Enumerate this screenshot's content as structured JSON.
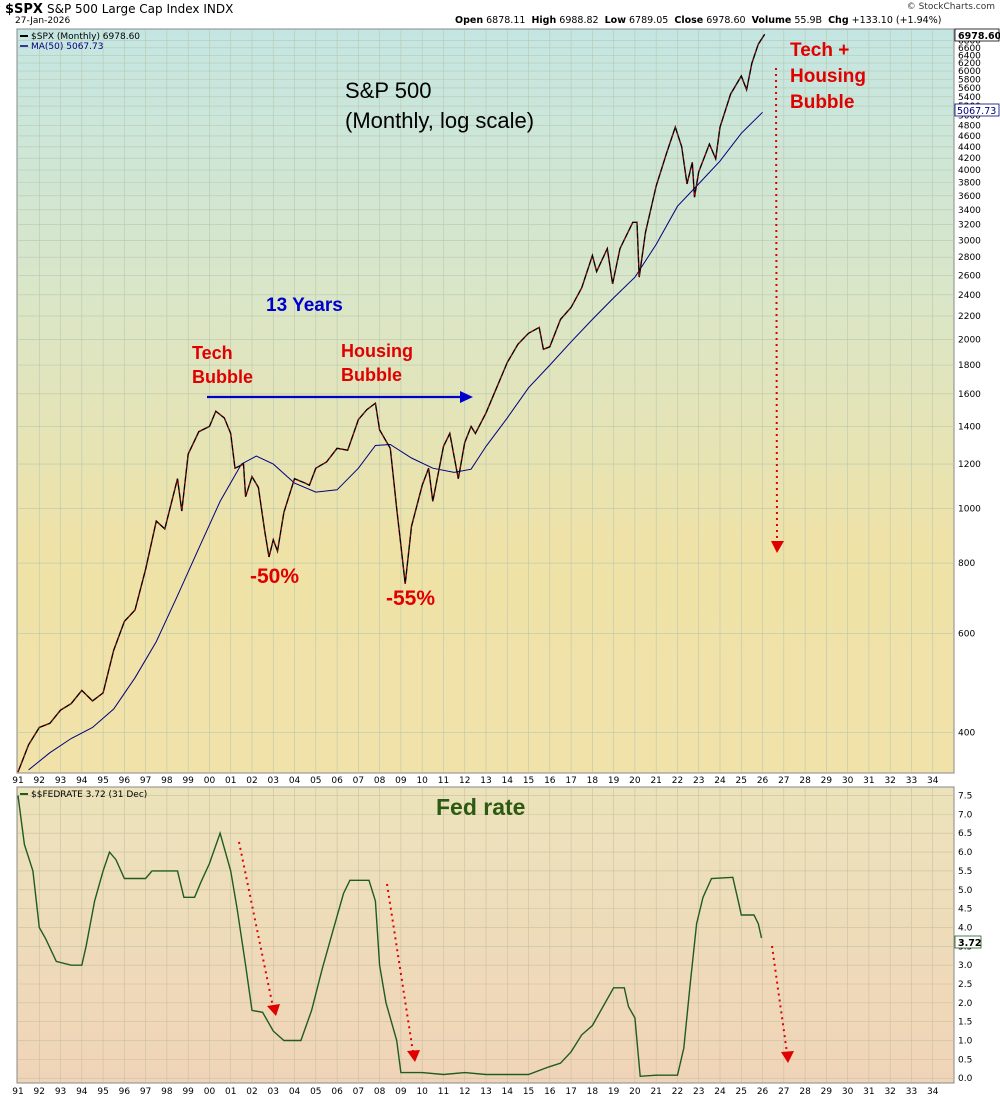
{
  "header": {
    "symbol": "$SPX",
    "name": "S&P 500 Large Cap Index",
    "exchange": "INDX",
    "date": "27-Jan-2026",
    "open_label": "Open",
    "open": "6878.11",
    "high_label": "High",
    "high": "6988.82",
    "low_label": "Low",
    "low": "6789.05",
    "close_label": "Close",
    "close": "6978.60",
    "volume_label": "Volume",
    "volume": "55.9B",
    "chg_label": "Chg",
    "chg": "+133.10 (+1.94%)",
    "watermark": "© StockCharts.com"
  },
  "colors": {
    "price": "#000000",
    "price_down": "#cc0000",
    "ma": "#000080",
    "fed": "#1f5c1f",
    "annot_red": "#e00000",
    "annot_blue": "#0000cc",
    "annot_green": "#2d5a12"
  },
  "chart_data": [
    {
      "type": "line",
      "scale": "log",
      "legend": [
        "$SPX (Monthly) 6978.60",
        "MA(50) 5067.73"
      ],
      "legend_placement": "top-left",
      "price_tag": "6978.60",
      "ma_tag": "5067.73",
      "ylim": [
        340,
        7100
      ],
      "xlim": [
        1991,
        2035
      ],
      "x_tick_labels": [
        "91",
        "92",
        "93",
        "94",
        "95",
        "96",
        "97",
        "98",
        "99",
        "00",
        "01",
        "02",
        "03",
        "04",
        "05",
        "06",
        "07",
        "08",
        "09",
        "10",
        "11",
        "12",
        "13",
        "14",
        "15",
        "16",
        "17",
        "18",
        "19",
        "20",
        "21",
        "22",
        "23",
        "24",
        "25",
        "26",
        "27",
        "28",
        "29",
        "30",
        "31",
        "32",
        "33",
        "34"
      ],
      "y_ticks": [
        400,
        600,
        800,
        1000,
        1200,
        1400,
        1600,
        1800,
        2000,
        2200,
        2400,
        2600,
        2800,
        3000,
        3200,
        3400,
        3600,
        3800,
        4000,
        4200,
        4400,
        4600,
        4800,
        5000,
        5200,
        5400,
        5600,
        5800,
        6000,
        6200,
        6400,
        6600,
        6800
      ],
      "grid": true,
      "annotations": {
        "title": "S&P 500",
        "subtitle": "(Monthly, log scale)",
        "tech_bubble": [
          "Tech",
          "Bubble"
        ],
        "housing_bubble": [
          "Housing",
          "Bubble"
        ],
        "years": "13 Years",
        "drop1": "-50%",
        "drop2": "-55%",
        "future": [
          "Tech +",
          "Housing",
          "Bubble"
        ]
      },
      "series": [
        {
          "name": "$SPX (Monthly)",
          "points": [
            [
              1991.0,
              340
            ],
            [
              1991.5,
              380
            ],
            [
              1992.0,
              408
            ],
            [
              1992.5,
              415
            ],
            [
              1993.0,
              438
            ],
            [
              1993.5,
              450
            ],
            [
              1994.0,
              475
            ],
            [
              1994.5,
              455
            ],
            [
              1995.0,
              470
            ],
            [
              1995.5,
              560
            ],
            [
              1996.0,
              630
            ],
            [
              1996.5,
              660
            ],
            [
              1997.0,
              780
            ],
            [
              1997.5,
              950
            ],
            [
              1997.9,
              920
            ],
            [
              1998.5,
              1130
            ],
            [
              1998.7,
              990
            ],
            [
              1999.0,
              1250
            ],
            [
              1999.5,
              1370
            ],
            [
              2000.0,
              1400
            ],
            [
              2000.3,
              1490
            ],
            [
              2000.7,
              1450
            ],
            [
              2001.0,
              1360
            ],
            [
              2001.2,
              1180
            ],
            [
              2001.6,
              1200
            ],
            [
              2001.7,
              1050
            ],
            [
              2002.0,
              1140
            ],
            [
              2002.3,
              1090
            ],
            [
              2002.6,
              910
            ],
            [
              2002.8,
              820
            ],
            [
              2003.0,
              880
            ],
            [
              2003.2,
              840
            ],
            [
              2003.5,
              985
            ],
            [
              2004.0,
              1130
            ],
            [
              2004.5,
              1110
            ],
            [
              2004.7,
              1100
            ],
            [
              2005.0,
              1180
            ],
            [
              2005.5,
              1210
            ],
            [
              2006.0,
              1280
            ],
            [
              2006.5,
              1270
            ],
            [
              2007.0,
              1440
            ],
            [
              2007.4,
              1500
            ],
            [
              2007.8,
              1540
            ],
            [
              2008.0,
              1380
            ],
            [
              2008.5,
              1280
            ],
            [
              2008.8,
              1000
            ],
            [
              2009.0,
              860
            ],
            [
              2009.2,
              735
            ],
            [
              2009.5,
              930
            ],
            [
              2010.0,
              1100
            ],
            [
              2010.3,
              1180
            ],
            [
              2010.5,
              1030
            ],
            [
              2011.0,
              1290
            ],
            [
              2011.3,
              1360
            ],
            [
              2011.7,
              1130
            ],
            [
              2012.0,
              1310
            ],
            [
              2012.3,
              1400
            ],
            [
              2012.5,
              1360
            ],
            [
              2013.0,
              1480
            ],
            [
              2013.5,
              1640
            ],
            [
              2014.0,
              1820
            ],
            [
              2014.5,
              1960
            ],
            [
              2015.0,
              2050
            ],
            [
              2015.5,
              2100
            ],
            [
              2015.7,
              1920
            ],
            [
              2016.0,
              1940
            ],
            [
              2016.5,
              2170
            ],
            [
              2017.0,
              2280
            ],
            [
              2017.5,
              2470
            ],
            [
              2018.0,
              2820
            ],
            [
              2018.2,
              2640
            ],
            [
              2018.7,
              2900
            ],
            [
              2018.95,
              2510
            ],
            [
              2019.3,
              2900
            ],
            [
              2019.9,
              3230
            ],
            [
              2020.1,
              3230
            ],
            [
              2020.2,
              2580
            ],
            [
              2020.5,
              3100
            ],
            [
              2021.0,
              3750
            ],
            [
              2021.5,
              4300
            ],
            [
              2021.9,
              4770
            ],
            [
              2022.2,
              4400
            ],
            [
              2022.45,
              3780
            ],
            [
              2022.7,
              4130
            ],
            [
              2022.8,
              3580
            ],
            [
              2023.0,
              3970
            ],
            [
              2023.5,
              4450
            ],
            [
              2023.8,
              4190
            ],
            [
              2024.0,
              4770
            ],
            [
              2024.5,
              5460
            ],
            [
              2025.0,
              5880
            ],
            [
              2025.25,
              5560
            ],
            [
              2025.5,
              6200
            ],
            [
              2025.8,
              6700
            ],
            [
              2026.1,
              6978.6
            ]
          ]
        },
        {
          "name": "MA(50)",
          "points": [
            [
              1991.5,
              343
            ],
            [
              1992.5,
              368
            ],
            [
              1993.5,
              390
            ],
            [
              1994.5,
              408
            ],
            [
              1995.5,
              440
            ],
            [
              1996.5,
              500
            ],
            [
              1997.5,
              580
            ],
            [
              1998.5,
              700
            ],
            [
              1999.5,
              850
            ],
            [
              2000.5,
              1030
            ],
            [
              2001.5,
              1200
            ],
            [
              2002.2,
              1240
            ],
            [
              2003.0,
              1200
            ],
            [
              2004.0,
              1110
            ],
            [
              2005.0,
              1070
            ],
            [
              2006.0,
              1080
            ],
            [
              2007.0,
              1180
            ],
            [
              2007.8,
              1295
            ],
            [
              2008.5,
              1300
            ],
            [
              2009.5,
              1230
            ],
            [
              2010.5,
              1180
            ],
            [
              2011.5,
              1160
            ],
            [
              2012.3,
              1175
            ],
            [
              2013.0,
              1290
            ],
            [
              2014.0,
              1450
            ],
            [
              2015.0,
              1640
            ],
            [
              2016.0,
              1800
            ],
            [
              2017.0,
              1980
            ],
            [
              2018.0,
              2170
            ],
            [
              2019.0,
              2370
            ],
            [
              2020.0,
              2580
            ],
            [
              2021.0,
              2950
            ],
            [
              2022.0,
              3450
            ],
            [
              2023.0,
              3780
            ],
            [
              2024.0,
              4150
            ],
            [
              2025.0,
              4650
            ],
            [
              2026.0,
              5067.73
            ]
          ]
        }
      ]
    },
    {
      "type": "line",
      "legend": [
        "$$FEDRATE 3.72 (31 Dec)"
      ],
      "legend_placement": "top-left",
      "title": "Fed rate",
      "price_tag": "3.72",
      "ylim": [
        -0.1,
        7.7
      ],
      "xlim": [
        1991,
        2035
      ],
      "x_tick_labels": [
        "91",
        "92",
        "93",
        "94",
        "95",
        "96",
        "97",
        "98",
        "99",
        "00",
        "01",
        "02",
        "03",
        "04",
        "05",
        "06",
        "07",
        "08",
        "09",
        "10",
        "11",
        "12",
        "13",
        "14",
        "15",
        "16",
        "17",
        "18",
        "19",
        "20",
        "21",
        "22",
        "23",
        "24",
        "25",
        "26",
        "27",
        "28",
        "29",
        "30",
        "31",
        "32",
        "33",
        "34"
      ],
      "y_ticks": [
        "7.5",
        "7.0",
        "6.5",
        "6.0",
        "5.5",
        "5.0",
        "4.5",
        "4.0",
        "3.5",
        "3.0",
        "2.5",
        "2.0",
        "1.5",
        "1.0",
        "0.5",
        "0.0"
      ],
      "grid": true,
      "series": [
        {
          "name": "$$FEDRATE",
          "points": [
            [
              1991.0,
              7.5
            ],
            [
              1991.3,
              6.2
            ],
            [
              1991.7,
              5.5
            ],
            [
              1992.0,
              4.0
            ],
            [
              1992.3,
              3.7
            ],
            [
              1992.8,
              3.1
            ],
            [
              1993.5,
              3.0
            ],
            [
              1994.0,
              3.0
            ],
            [
              1994.2,
              3.5
            ],
            [
              1994.6,
              4.7
            ],
            [
              1995.0,
              5.5
            ],
            [
              1995.3,
              6.0
            ],
            [
              1995.6,
              5.8
            ],
            [
              1996.0,
              5.3
            ],
            [
              1996.5,
              5.3
            ],
            [
              1997.0,
              5.3
            ],
            [
              1997.3,
              5.5
            ],
            [
              1998.0,
              5.5
            ],
            [
              1998.5,
              5.5
            ],
            [
              1998.8,
              4.8
            ],
            [
              1999.3,
              4.8
            ],
            [
              1999.6,
              5.2
            ],
            [
              2000.0,
              5.7
            ],
            [
              2000.5,
              6.5
            ],
            [
              2001.0,
              5.5
            ],
            [
              2001.3,
              4.5
            ],
            [
              2001.7,
              3.0
            ],
            [
              2002.0,
              1.8
            ],
            [
              2002.5,
              1.75
            ],
            [
              2003.0,
              1.25
            ],
            [
              2003.5,
              1.0
            ],
            [
              2004.3,
              1.0
            ],
            [
              2004.8,
              1.8
            ],
            [
              2005.3,
              2.9
            ],
            [
              2005.8,
              3.9
            ],
            [
              2006.3,
              4.9
            ],
            [
              2006.6,
              5.25
            ],
            [
              2007.5,
              5.25
            ],
            [
              2007.8,
              4.7
            ],
            [
              2008.0,
              3.0
            ],
            [
              2008.3,
              2.0
            ],
            [
              2008.8,
              1.0
            ],
            [
              2009.0,
              0.15
            ],
            [
              2010.0,
              0.15
            ],
            [
              2011.0,
              0.1
            ],
            [
              2012.0,
              0.15
            ],
            [
              2013.0,
              0.1
            ],
            [
              2014.0,
              0.1
            ],
            [
              2015.0,
              0.1
            ],
            [
              2015.95,
              0.3
            ],
            [
              2016.5,
              0.4
            ],
            [
              2017.0,
              0.7
            ],
            [
              2017.5,
              1.15
            ],
            [
              2018.0,
              1.4
            ],
            [
              2018.5,
              1.9
            ],
            [
              2019.0,
              2.4
            ],
            [
              2019.5,
              2.4
            ],
            [
              2019.7,
              1.9
            ],
            [
              2020.0,
              1.6
            ],
            [
              2020.25,
              0.05
            ],
            [
              2021.0,
              0.08
            ],
            [
              2022.0,
              0.08
            ],
            [
              2022.3,
              0.8
            ],
            [
              2022.6,
              2.5
            ],
            [
              2022.9,
              4.1
            ],
            [
              2023.2,
              4.8
            ],
            [
              2023.6,
              5.3
            ],
            [
              2024.6,
              5.33
            ],
            [
              2024.9,
              4.6
            ],
            [
              2025.0,
              4.33
            ],
            [
              2025.6,
              4.33
            ],
            [
              2025.8,
              4.1
            ],
            [
              2025.95,
              3.72
            ]
          ]
        }
      ],
      "annotations": {}
    }
  ]
}
